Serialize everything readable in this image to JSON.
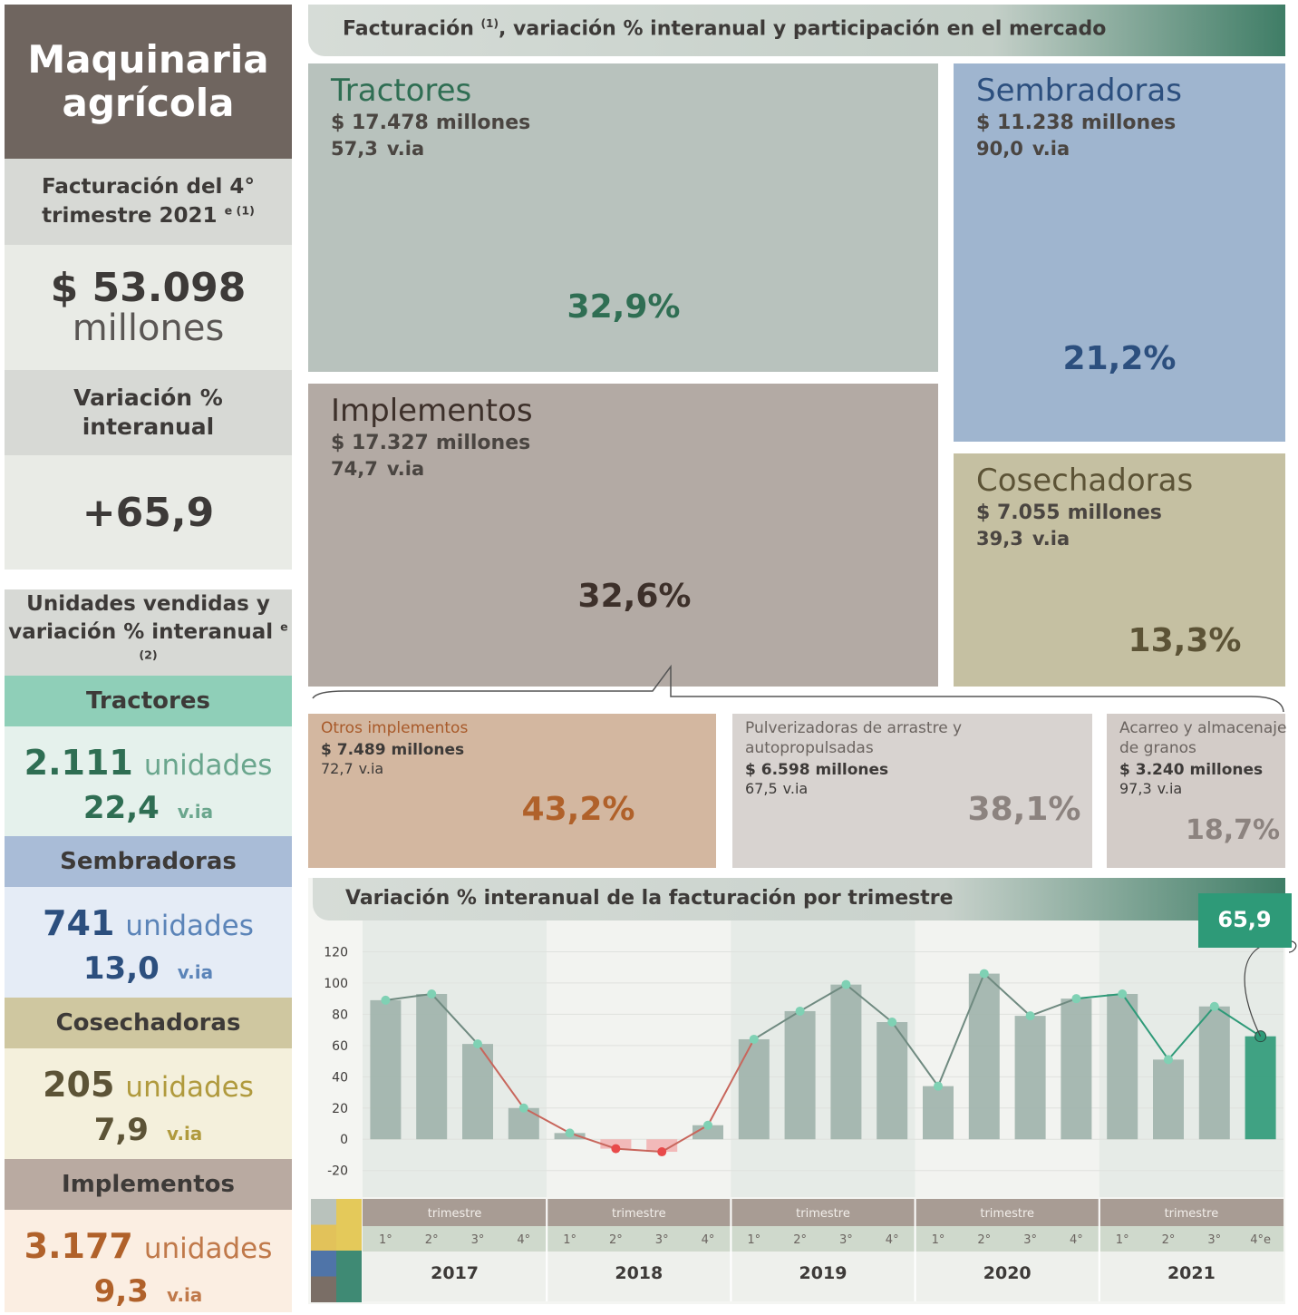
{
  "sidebar": {
    "title": "Maquinaria agrícola",
    "revenue_label": "Facturación del 4° trimestre 2021",
    "revenue_label_note": "e (1)",
    "revenue_value": "$ 53.098",
    "revenue_unit": "millones",
    "variation_label": "Variación % interanual",
    "variation_value": "+65,9",
    "units_title": "Unidades vendidas y variación % interanual",
    "units_title_note": "e (2)",
    "units": [
      {
        "name": "Tractores",
        "units": "2.111",
        "unit_label": "unidades",
        "yoy": "22,4",
        "yoy_label": "v.ia"
      },
      {
        "name": "Sembradoras",
        "units": "741",
        "unit_label": "unidades",
        "yoy": "13,0",
        "yoy_label": "v.ia"
      },
      {
        "name": "Cosechadoras",
        "units": "205",
        "unit_label": "unidades",
        "yoy": "7,9",
        "yoy_label": "v.ia"
      },
      {
        "name": "Implementos",
        "units": "3.177",
        "unit_label": "unidades",
        "yoy": "9,3",
        "yoy_label": "v.ia"
      }
    ]
  },
  "market": {
    "title": "Facturación",
    "title_note": "(1)",
    "title_rest": ", variación % interanual y participación en el mercado",
    "segments": [
      {
        "name": "Tractores",
        "revenue": "$ 17.478",
        "revenue_unit": "millones",
        "yoy": "57,3",
        "yoy_label": "v.ia",
        "share": "32,9%"
      },
      {
        "name": "Sembradoras",
        "revenue": "$ 11.238",
        "revenue_unit": "millones",
        "yoy": "90,0",
        "yoy_label": "v.ia",
        "share": "21,2%"
      },
      {
        "name": "Implementos",
        "revenue": "$ 17.327",
        "revenue_unit": "millones",
        "yoy": "74,7",
        "yoy_label": "v.ia",
        "share": "32,6%"
      },
      {
        "name": "Cosechadoras",
        "revenue": "$ 7.055",
        "revenue_unit": "millones",
        "yoy": "39,3",
        "yoy_label": "v.ia",
        "share": "13,3%"
      }
    ],
    "sub_segments": [
      {
        "name": "Otros implementos",
        "revenue": "$ 7.489",
        "revenue_unit": "millones",
        "yoy": "72,7",
        "yoy_label": "v.ia",
        "share": "43,2%"
      },
      {
        "name": "Pulverizadoras de arrastre y autopropulsadas",
        "revenue": "$ 6.598",
        "revenue_unit": "millones",
        "yoy": "67,5",
        "yoy_label": "v.ia",
        "share": "38,1%"
      },
      {
        "name": "Acarreo y almacenaje de granos",
        "revenue": "$ 3.240",
        "revenue_unit": "millones",
        "yoy": "97,3",
        "yoy_label": "v.ia",
        "share": "18,7%"
      }
    ]
  },
  "chart_data": {
    "type": "bar",
    "title": "Variación % interanual de la facturación por trimestre",
    "categories": [
      "1°",
      "2°",
      "3°",
      "4°",
      "1°",
      "2°",
      "3°",
      "4°",
      "1°",
      "2°",
      "3°",
      "4°",
      "1°",
      "2°",
      "3°",
      "4°",
      "1°",
      "2°",
      "3°",
      "4°e"
    ],
    "groups": [
      {
        "label": "2017",
        "sublabel": "trimestre"
      },
      {
        "label": "2018",
        "sublabel": "trimestre"
      },
      {
        "label": "2019",
        "sublabel": "trimestre"
      },
      {
        "label": "2020",
        "sublabel": "trimestre"
      },
      {
        "label": "2021",
        "sublabel": "trimestre"
      }
    ],
    "values": [
      89,
      93,
      61,
      20,
      4,
      -6,
      -8,
      9,
      64,
      82,
      99,
      75,
      34,
      106,
      79,
      90,
      93,
      51,
      85,
      65.9
    ],
    "value_labels": [
      null,
      null,
      null,
      null,
      null,
      null,
      null,
      null,
      null,
      null,
      null,
      null,
      null,
      null,
      null,
      null,
      null,
      null,
      null,
      "65,9"
    ],
    "color": "#9fb3ab",
    "negative_color": "#f2b3b3",
    "highlight_color": "#2e9a78",
    "line_color": "#6f8a80",
    "line_negative_color": "#c8665c",
    "marker_color": "#7fd1b4",
    "marker_negative_color": "#e84a4a",
    "ylim": [
      -37,
      140
    ],
    "yticks": [
      -20,
      0,
      20,
      40,
      60,
      80,
      100,
      120
    ],
    "grid": true
  }
}
